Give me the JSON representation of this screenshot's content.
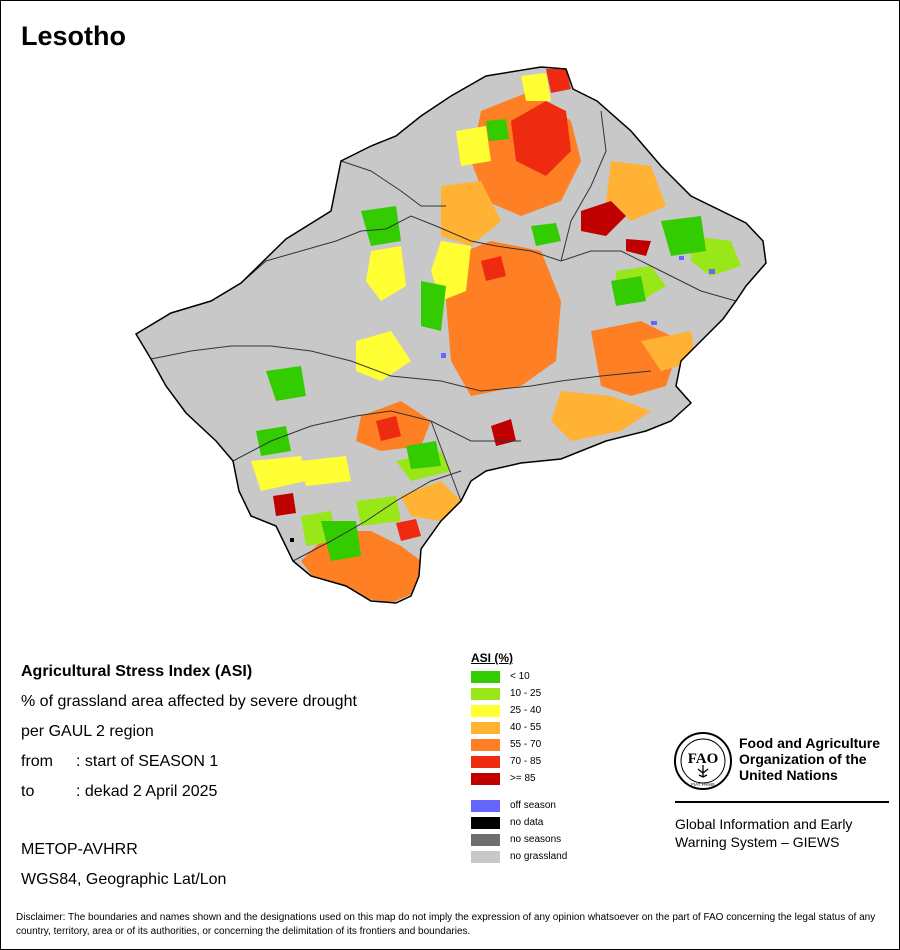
{
  "title": "Lesotho",
  "info": {
    "heading": "Agricultural Stress Index (ASI)",
    "line2": "% of grassland area affected by severe drought",
    "line3": "per GAUL 2 region",
    "from_key": "from",
    "from_value": ": start of SEASON 1",
    "to_key": "to",
    "to_value": ": dekad 2 April 2025"
  },
  "source": {
    "sensor": "METOP-AVHRR",
    "projection": "WGS84, Geographic Lat/Lon"
  },
  "legend": {
    "title": "ASI (%)",
    "classes": [
      {
        "label": "< 10",
        "color": "#33cc00"
      },
      {
        "label": "10 - 25",
        "color": "#99e619"
      },
      {
        "label": "25 - 40",
        "color": "#ffff33"
      },
      {
        "label": "40 - 55",
        "color": "#ffb233"
      },
      {
        "label": "55 - 70",
        "color": "#ff7f24"
      },
      {
        "label": "70 - 85",
        "color": "#ee2a10"
      },
      {
        "label": ">= 85",
        "color": "#c00000"
      }
    ],
    "other": [
      {
        "label": "off season",
        "color": "#6666ff"
      },
      {
        "label": "no data",
        "color": "#000000"
      },
      {
        "label": "no seasons",
        "color": "#6e6e6e"
      },
      {
        "label": "no grassland",
        "color": "#c8c8c8"
      }
    ]
  },
  "org": {
    "name": "Food and Agriculture Organization of the United Nations",
    "seal_top": "FAO",
    "seal_bottom": "FIAT PANIS",
    "system": "Global Information and Early Warning System – GIEWS"
  },
  "disclaimer": "Disclaimer: The boundaries and names shown and the designations used on this map do not imply the expression of any opinion whatsoever on the part of FAO concerning the legal status of any country, territory, area or of its authorities, or concerning the delimitation of its frontiers and boundaries."
}
